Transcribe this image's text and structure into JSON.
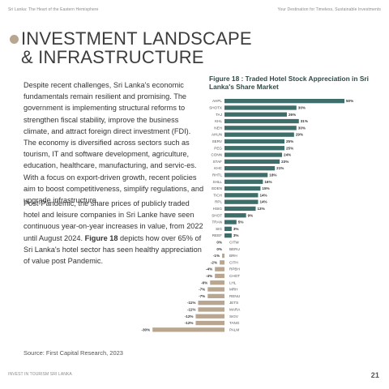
{
  "header": {
    "left": "Sri Lanka: The Heart of the Eastern Hemisphere",
    "right": "Your Destination for Timeless, Sustainable Investments"
  },
  "title": {
    "line1": "INVESTMENT LANDSCAPE",
    "line2": "& INFRASTRUCTURE"
  },
  "body": {
    "paragraph1": "Despite recent challenges, Sri Lanka's economic fundamentals remain resilient and promising. The government is implementing structural reforms to strengthen fiscal stability, improve the business climate, and attract foreign direct investment (FDI). The economy is diversified across sectors such as tourism, IT and software development, agriculture, education, healthcare, manufacturing, and servic-es. With a focus on export-driven growth, recent policies aim to boost competitiveness, simplify regulations, and upgrade infrastructure.",
    "paragraph2_a": "Post-Pandemic, the share prices of publicly traded hotel and leisure companies in Sri Lanke have seen continuous year-on-year increases in value, from 2022 until August 2024. ",
    "paragraph2_bold": "Figure 18",
    "paragraph2_b": " depicts how over 65% of Sri Lanka's hotel sector has seen healthy appreciation of value post Pandemic."
  },
  "source": "Source: First Capital Research, 2023",
  "footer": {
    "left": "Invest in Tourism Sri Lanka",
    "page": "21"
  },
  "colors": {
    "positive": "#3e6e69",
    "negative": "#b8a691",
    "title": "#2f4a47"
  },
  "chart_data": {
    "type": "bar",
    "orientation": "horizontal",
    "title": "Figure 18 : Traded Hotel Stock Appreciation in Sri Lanka's Share Market",
    "categories": [
      "AHPL",
      "SHOTX",
      "TAJ",
      "KHL",
      "NEH",
      "AHUN",
      "SERV",
      "PEG",
      "CONN",
      "STAF",
      "KHC",
      "RHTL",
      "SHLL",
      "EDEN",
      "TICH",
      "RPL",
      "HSIG",
      "SHOT",
      "TRAN",
      "SIG",
      "REEF",
      "CITW",
      "BERU",
      "BRH",
      "CITH",
      "RPBH",
      "CHOT",
      "LHL",
      "MRH",
      "RENU",
      "JETS",
      "MARA",
      "SIGV",
      "TANG",
      "PALM"
    ],
    "values": [
      50,
      30,
      26,
      31,
      30,
      29,
      25,
      25,
      24,
      23,
      21,
      18,
      16,
      15,
      14,
      14,
      13,
      9,
      5,
      3,
      3,
      0,
      0,
      -1,
      -2,
      -4,
      -4,
      -6,
      -7,
      -7,
      -11,
      -11,
      -12,
      -12,
      -30
    ],
    "value_labels": [
      "50%",
      "30%",
      "26%",
      "31%",
      "30%",
      "29%",
      "25%",
      "25%",
      "24%",
      "23%",
      "21%",
      "18%",
      "16%",
      "15%",
      "14%",
      "14%",
      "13%",
      "9%",
      "5%",
      "3%",
      "3%",
      "0%",
      "0%",
      "-1%",
      "-2%",
      "-4%",
      "-4%",
      "-6%",
      "-7%",
      "-7%",
      "-11%",
      "-11%",
      "-12%",
      "-12%",
      "-30%"
    ],
    "xlabel": "",
    "ylabel": "",
    "xlim": [
      -30,
      50
    ]
  }
}
